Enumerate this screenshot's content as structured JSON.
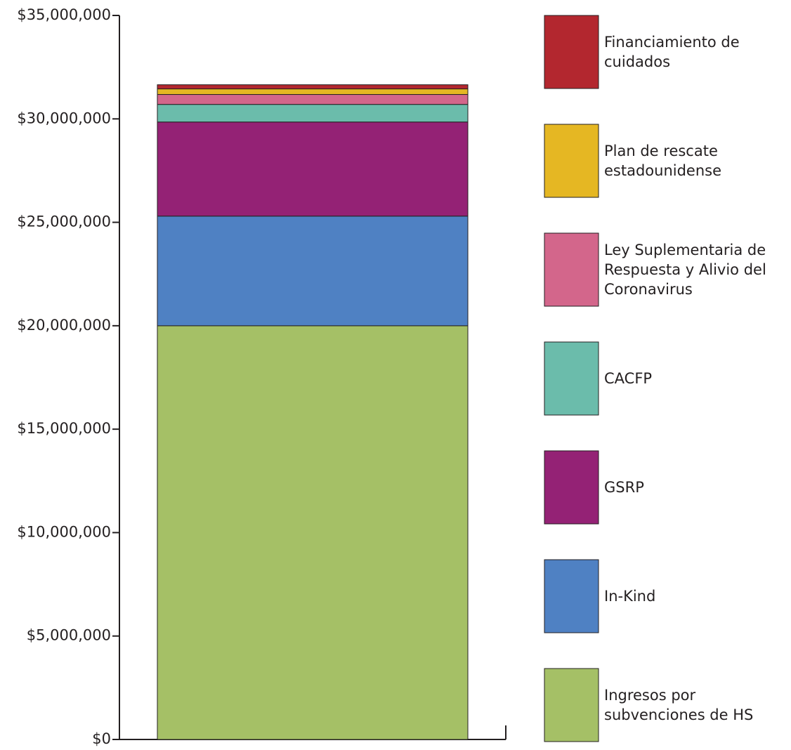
{
  "chart_data": {
    "type": "stacked_bar",
    "categories": [
      null
    ],
    "series": [
      {
        "name": "Ingresos por subvenciones de HS",
        "color": "#a5c066",
        "values": [
          20000000
        ]
      },
      {
        "name": "In-Kind",
        "color": "#4f81c3",
        "values": [
          5300000
        ]
      },
      {
        "name": "GSRP",
        "color": "#942275",
        "values": [
          4550000
        ]
      },
      {
        "name": "CACFP",
        "color": "#6bbcab",
        "values": [
          850000
        ]
      },
      {
        "name": "Ley Suplementaria de Respuesta y Alivio del Coronavirus",
        "color": "#d3668b",
        "values": [
          480000
        ]
      },
      {
        "name": "Plan de rescate estadounidense",
        "color": "#e5b723",
        "values": [
          270000
        ]
      },
      {
        "name": "Financiamiento de cuidados",
        "color": "#b3272f",
        "values": [
          200000
        ]
      }
    ],
    "ylim": [
      0,
      35000000
    ],
    "yticks": [
      {
        "value": 0,
        "label": "$0"
      },
      {
        "value": 5000000,
        "label": "$5,000,000"
      },
      {
        "value": 10000000,
        "label": "$10,000,000"
      },
      {
        "value": 15000000,
        "label": "$15,000,000"
      },
      {
        "value": 20000000,
        "label": "$20,000,000"
      },
      {
        "value": 25000000,
        "label": "$25,000,000"
      },
      {
        "value": 30000000,
        "label": "$30,000,000"
      },
      {
        "value": 35000000,
        "label": "$35,000,000"
      }
    ],
    "legend": "right"
  }
}
